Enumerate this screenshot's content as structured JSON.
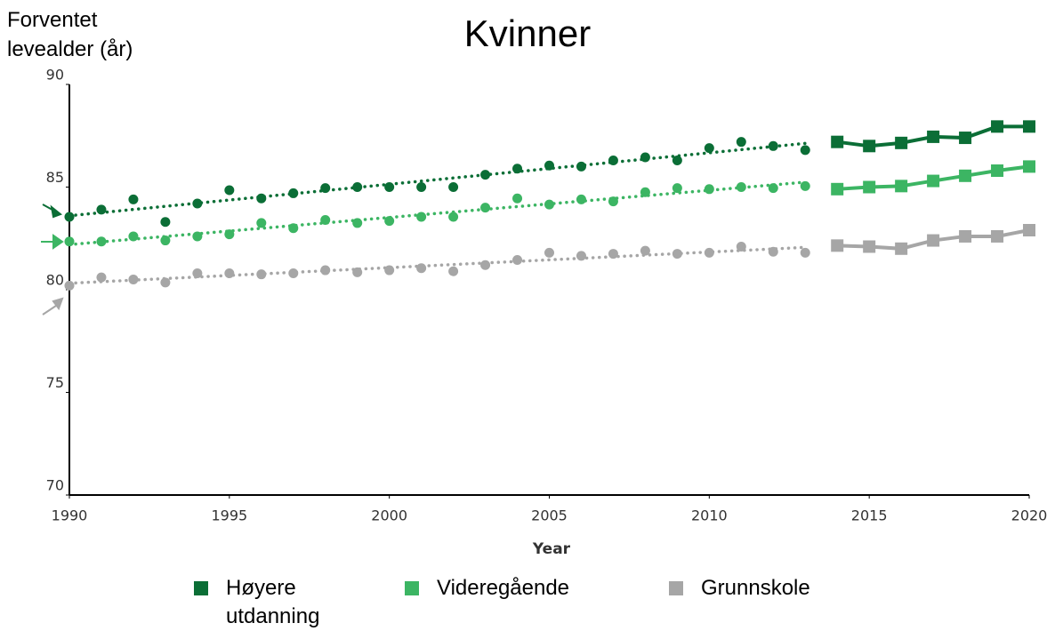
{
  "chart_data": {
    "type": "line",
    "title": "Kvinner",
    "y_label": "Forventet levealder (år)",
    "x_label": "Year",
    "x": [
      1990,
      1991,
      1992,
      1993,
      1994,
      1995,
      1996,
      1997,
      1998,
      1999,
      2000,
      2001,
      2002,
      2003,
      2004,
      2005,
      2006,
      2007,
      2008,
      2009,
      2010,
      2011,
      2012,
      2013
    ],
    "projection_x": [
      2014,
      2015,
      2016,
      2017,
      2018,
      2019,
      2020
    ],
    "series": [
      {
        "name": "Høyere utdanning",
        "color": "#0b6e36",
        "values": [
          83.55,
          83.9,
          84.4,
          83.3,
          84.2,
          84.85,
          84.45,
          84.7,
          84.95,
          85.0,
          85.0,
          85.0,
          85.0,
          85.6,
          85.9,
          86.05,
          86.0,
          86.3,
          86.45,
          86.3,
          86.9,
          87.2,
          87.0,
          86.8
        ],
        "projection": [
          87.2,
          87.0,
          87.15,
          87.45,
          87.4,
          87.95,
          87.95
        ]
      },
      {
        "name": "Videregående",
        "color": "#3cb563",
        "values": [
          82.35,
          82.35,
          82.6,
          82.4,
          82.6,
          82.7,
          83.25,
          83.0,
          83.4,
          83.25,
          83.35,
          83.55,
          83.55,
          84.0,
          84.45,
          84.15,
          84.4,
          84.3,
          84.75,
          84.95,
          84.9,
          85.0,
          84.95,
          85.05
        ],
        "projection": [
          84.9,
          85.0,
          85.05,
          85.3,
          85.55,
          85.8,
          86.0
        ]
      },
      {
        "name": "Grunnskole",
        "color": "#a6a6a6",
        "values": [
          80.2,
          80.6,
          80.5,
          80.35,
          80.8,
          80.8,
          80.75,
          80.8,
          80.95,
          80.85,
          80.95,
          81.05,
          80.9,
          81.2,
          81.45,
          81.8,
          81.65,
          81.75,
          81.9,
          81.75,
          81.8,
          82.1,
          81.85,
          81.8
        ],
        "projection": [
          82.15,
          82.1,
          82.0,
          82.4,
          82.6,
          82.6,
          82.9
        ]
      }
    ],
    "xlim": [
      1990,
      2020
    ],
    "ylim": [
      70,
      90
    ],
    "xticks": [
      1990,
      1995,
      2000,
      2005,
      2010,
      2015,
      2020
    ],
    "yticks": [
      70,
      75,
      80,
      85,
      90
    ]
  }
}
